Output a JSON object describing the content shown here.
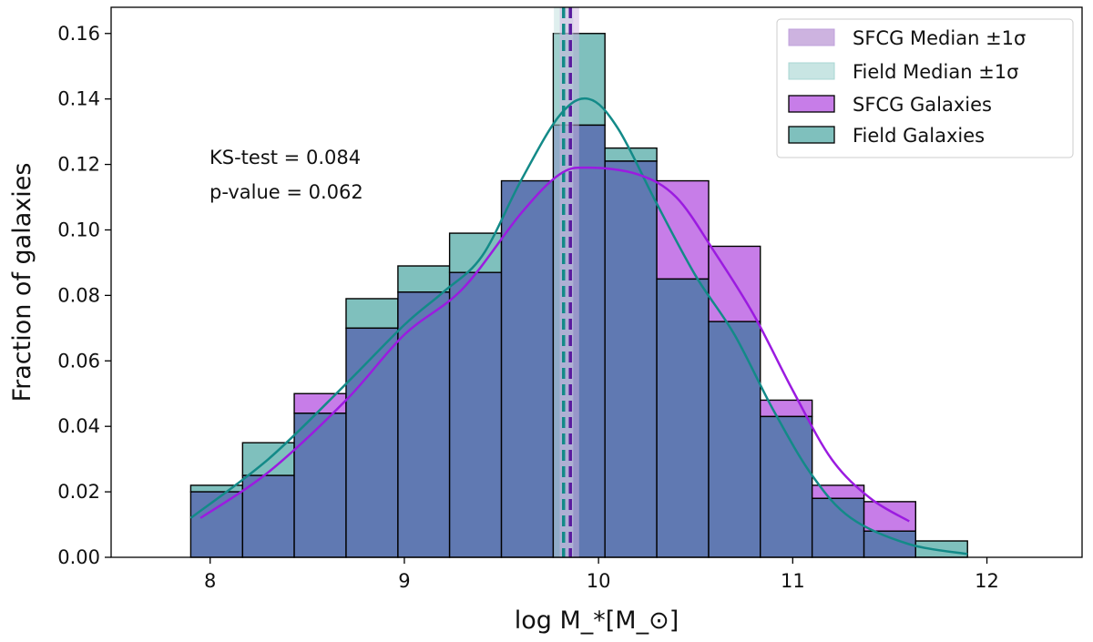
{
  "chart_data": {
    "type": "bar",
    "subtype": "overlapping histogram with KDE curves",
    "xlabel": "log M_*[M_⊙]",
    "ylabel": "Fraction of galaxies",
    "xlim": [
      7.49,
      12.49
    ],
    "ylim": [
      0,
      0.168
    ],
    "xticks": [
      "8",
      "9",
      "10",
      "11",
      "12"
    ],
    "yticks": [
      "0.00",
      "0.02",
      "0.04",
      "0.06",
      "0.08",
      "0.10",
      "0.12",
      "0.14",
      "0.16"
    ],
    "grid": false,
    "legend_position": "top-right",
    "bin_edges": [
      7.9,
      8.167,
      8.433,
      8.7,
      8.967,
      9.233,
      9.5,
      9.767,
      10.033,
      10.3,
      10.567,
      10.833,
      11.1,
      11.367,
      11.633,
      11.9
    ],
    "series": [
      {
        "name": "SFCG Galaxies",
        "color": "#c77de8",
        "values": [
          0.02,
          0.025,
          0.05,
          0.07,
          0.081,
          0.087,
          0.115,
          0.132,
          0.121,
          0.115,
          0.095,
          0.048,
          0.022,
          0.017,
          0.0
        ],
        "kde_color": "#9b1be0",
        "kde": [
          [
            7.95,
            0.012
          ],
          [
            8.3,
            0.026
          ],
          [
            8.7,
            0.048
          ],
          [
            9.0,
            0.068
          ],
          [
            9.3,
            0.082
          ],
          [
            9.6,
            0.105
          ],
          [
            9.8,
            0.117
          ],
          [
            9.95,
            0.119
          ],
          [
            10.2,
            0.117
          ],
          [
            10.4,
            0.11
          ],
          [
            10.6,
            0.093
          ],
          [
            10.8,
            0.074
          ],
          [
            11.0,
            0.051
          ],
          [
            11.2,
            0.03
          ],
          [
            11.4,
            0.018
          ],
          [
            11.6,
            0.011
          ]
        ]
      },
      {
        "name": "Field Galaxies",
        "color": "#7fc0bd",
        "values": [
          0.022,
          0.035,
          0.044,
          0.079,
          0.089,
          0.099,
          0.115,
          0.16,
          0.125,
          0.085,
          0.072,
          0.043,
          0.018,
          0.008,
          0.005
        ],
        "kde_color": "#138a88",
        "kde": [
          [
            7.9,
            0.012
          ],
          [
            8.3,
            0.03
          ],
          [
            8.7,
            0.053
          ],
          [
            9.0,
            0.071
          ],
          [
            9.2,
            0.081
          ],
          [
            9.4,
            0.092
          ],
          [
            9.6,
            0.115
          ],
          [
            9.8,
            0.135
          ],
          [
            9.95,
            0.14
          ],
          [
            10.1,
            0.131
          ],
          [
            10.3,
            0.108
          ],
          [
            10.5,
            0.086
          ],
          [
            10.7,
            0.068
          ],
          [
            10.9,
            0.045
          ],
          [
            11.1,
            0.025
          ],
          [
            11.3,
            0.012
          ],
          [
            11.6,
            0.004
          ],
          [
            11.9,
            0.001
          ]
        ]
      }
    ],
    "overlap_color": "#6079b2",
    "medians": [
      {
        "name": "SFCG Median ±1σ",
        "median": 9.855,
        "band": [
          9.8,
          9.9
        ],
        "color": "#5a1a9e",
        "band_color": "#cdb3e0"
      },
      {
        "name": "Field Median ±1σ",
        "median": 9.82,
        "band": [
          9.77,
          9.87
        ],
        "color": "#138a88",
        "band_color": "#bfe0de"
      }
    ],
    "annotations": [
      "KS-test = 0.084",
      "p-value = 0.062"
    ],
    "legend": [
      "SFCG Median ±1σ",
      "Field Median ±1σ",
      "SFCG Galaxies",
      "Field Galaxies"
    ]
  }
}
